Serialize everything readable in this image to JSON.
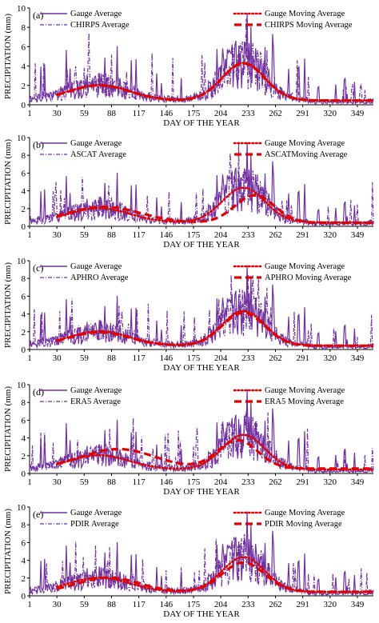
{
  "chart_data": [
    {
      "type": "line",
      "panel_label": "(a)",
      "ylabel": "PRECIPITATION (mm)",
      "xlabel": "DAY OF THE YEAR",
      "xlim": [
        1,
        366
      ],
      "ylim": [
        0,
        10
      ],
      "xticks": [
        1,
        30,
        59,
        88,
        117,
        146,
        175,
        204,
        233,
        262,
        291,
        320,
        349
      ],
      "yticks": [
        0,
        2,
        4,
        6,
        8,
        10
      ],
      "legend_position": "top",
      "series": [
        {
          "name": "Gauge Average",
          "style": "solid",
          "color": "#7030a0",
          "seed": 1
        },
        {
          "name": "CHIRPS Average",
          "style": "dashdot",
          "color": "#7030a0",
          "seed": 2
        },
        {
          "name": "Gauge Moving  Average",
          "style": "dotted",
          "color": "#e00000",
          "profile": "gauge"
        },
        {
          "name": "CHIRPS Moving  Average",
          "style": "dashed",
          "color": "#e00000",
          "profile": "chirps"
        }
      ]
    },
    {
      "type": "line",
      "panel_label": "(b)",
      "ylabel": "PRECIPITATION (mm)",
      "xlabel": "DAY OF THE YEAR",
      "xlim": [
        1,
        366
      ],
      "ylim": [
        0,
        10
      ],
      "xticks": [
        1,
        30,
        59,
        88,
        117,
        146,
        175,
        204,
        233,
        262,
        291,
        320,
        349
      ],
      "yticks": [
        0,
        2,
        4,
        6,
        8,
        10
      ],
      "legend_position": "top",
      "series": [
        {
          "name": "Gauge Average",
          "style": "solid",
          "color": "#7030a0",
          "seed": 1
        },
        {
          "name": "ASCAT Average",
          "style": "dashdot",
          "color": "#7030a0",
          "seed": 3
        },
        {
          "name": "Gauge Moving  Average",
          "style": "dotted",
          "color": "#e00000",
          "profile": "gauge"
        },
        {
          "name": "ASCATMoving  Average",
          "style": "dashed",
          "color": "#e00000",
          "profile": "ascat"
        }
      ]
    },
    {
      "type": "line",
      "panel_label": "(c)",
      "ylabel": "PRECIPITATION (mm)",
      "xlabel": "DAY OF THE YEAR",
      "xlim": [
        1,
        366
      ],
      "ylim": [
        0,
        10
      ],
      "xticks": [
        1,
        30,
        59,
        88,
        117,
        146,
        175,
        204,
        233,
        262,
        291,
        320,
        349
      ],
      "yticks": [
        0,
        2,
        4,
        6,
        8,
        10
      ],
      "legend_position": "top",
      "series": [
        {
          "name": "Gauge Average",
          "style": "solid",
          "color": "#7030a0",
          "seed": 1
        },
        {
          "name": "APHRO Average",
          "style": "dashdot",
          "color": "#7030a0",
          "seed": 4
        },
        {
          "name": "Gauge Moving  Average",
          "style": "dotted",
          "color": "#e00000",
          "profile": "gauge"
        },
        {
          "name": "APHRO Moving  Average",
          "style": "dashed",
          "color": "#e00000",
          "profile": "aphro"
        }
      ]
    },
    {
      "type": "line",
      "panel_label": "(d)",
      "ylabel": "PRECIPITATION (mm)",
      "xlabel": "DAY OF THE YEAR",
      "xlim": [
        1,
        366
      ],
      "ylim": [
        0,
        10
      ],
      "xticks": [
        1,
        30,
        59,
        88,
        117,
        146,
        175,
        204,
        233,
        262,
        291,
        320,
        349
      ],
      "yticks": [
        0,
        2,
        4,
        6,
        8,
        10
      ],
      "legend_position": "top",
      "series": [
        {
          "name": "Gauge Average",
          "style": "solid",
          "color": "#7030a0",
          "seed": 1
        },
        {
          "name": "ERA5 Average",
          "style": "dashdot",
          "color": "#7030a0",
          "seed": 5
        },
        {
          "name": "Gauge Moving  Average",
          "style": "dotted",
          "color": "#e00000",
          "profile": "gauge"
        },
        {
          "name": "ERA5 Moving  Average",
          "style": "dashed",
          "color": "#e00000",
          "profile": "era5"
        }
      ]
    },
    {
      "type": "line",
      "panel_label": "(e)",
      "ylabel": "PRECIPITATION (mm)",
      "xlabel": "DAY OF THE YEAR",
      "xlim": [
        1,
        366
      ],
      "ylim": [
        0,
        10
      ],
      "xticks": [
        1,
        30,
        59,
        88,
        117,
        146,
        175,
        204,
        233,
        262,
        291,
        320,
        349
      ],
      "yticks": [
        0,
        2,
        4,
        6,
        8,
        10
      ],
      "legend_position": "top",
      "series": [
        {
          "name": "Gauge Average",
          "style": "solid",
          "color": "#7030a0",
          "seed": 1
        },
        {
          "name": "PDIR Average",
          "style": "dashdot",
          "color": "#7030a0",
          "seed": 6
        },
        {
          "name": "Gauge Moving  Average",
          "style": "dotted",
          "color": "#e00000",
          "profile": "gauge"
        },
        {
          "name": "PDIR Moving  Average",
          "style": "dashed",
          "color": "#e00000",
          "profile": "pdir"
        }
      ]
    }
  ]
}
